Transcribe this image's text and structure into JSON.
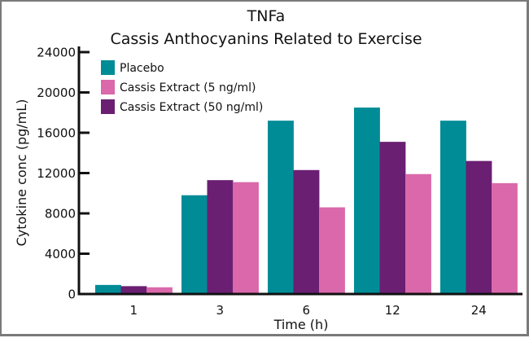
{
  "chart_data": {
    "type": "bar",
    "title": "TNFa",
    "subtitle": "Cassis Anthocyanins Related to Exercise",
    "xlabel": "Time (h)",
    "ylabel": "Cytokine conc (pg/mL)",
    "ylim": [
      0,
      24000
    ],
    "yticks": [
      0,
      4000,
      8000,
      12000,
      16000,
      20000,
      24000
    ],
    "ytick_labels": [
      "0",
      "4000",
      "8000",
      "12000",
      "16000",
      "20000",
      "24000"
    ],
    "categories": [
      "1",
      "3",
      "6",
      "12",
      "24"
    ],
    "grid": false,
    "legend_position": "top-left",
    "legend": [
      {
        "name": "Placebo",
        "color": "#008C96"
      },
      {
        "name": "Cassis Extract (5 ng/ml)",
        "color": "#DA68AA"
      },
      {
        "name": "Cassis Extract (50 ng/ml)",
        "color": "#6A1F72"
      }
    ],
    "bar_order": [
      "Placebo",
      "Cassis Extract (50 ng/ml)",
      "Cassis Extract (5 ng/ml)"
    ],
    "series": [
      {
        "name": "Placebo",
        "color": "#008C96",
        "values": [
          900,
          9800,
          17200,
          18500,
          17200
        ]
      },
      {
        "name": "Cassis Extract (50 ng/ml)",
        "color": "#6A1F72",
        "values": [
          780,
          11300,
          12300,
          15100,
          13200
        ]
      },
      {
        "name": "Cassis Extract (5 ng/ml)",
        "color": "#DA68AA",
        "values": [
          670,
          11100,
          8600,
          11900,
          11000
        ]
      }
    ]
  }
}
